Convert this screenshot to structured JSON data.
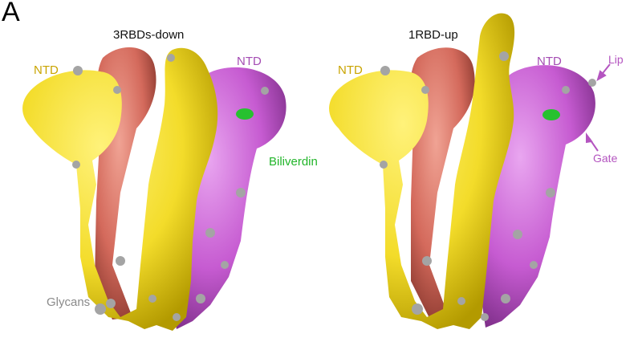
{
  "figure": {
    "panel_letter": "A",
    "left_panel": {
      "title": "3RBDs-down",
      "ntd_left_label": "NTD",
      "ntd_right_label": "NTD"
    },
    "right_panel": {
      "title": "1RBD-up",
      "ntd_left_label": "NTD",
      "ntd_right_label": "NTD"
    },
    "annotations": {
      "biliverdin": "Biliverdin",
      "glycans": "Glycans",
      "lip": "Lip",
      "gate": "Gate"
    }
  },
  "colors": {
    "chain_yellow": "#f3dc2a",
    "chain_magenta": "#c65bd1",
    "chain_salmon": "#d46a5c",
    "glycan_gray": "#9c9c9c",
    "biliverdin_green": "#27c12f",
    "label_yellow": "#c9a400",
    "label_magenta": "#a44cb3"
  }
}
